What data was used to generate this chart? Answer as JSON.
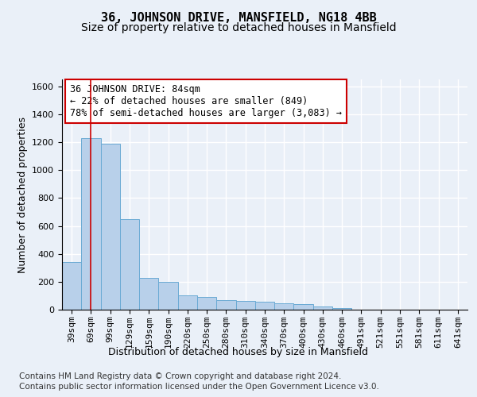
{
  "title": "36, JOHNSON DRIVE, MANSFIELD, NG18 4BB",
  "subtitle": "Size of property relative to detached houses in Mansfield",
  "xlabel": "Distribution of detached houses by size in Mansfield",
  "ylabel": "Number of detached properties",
  "footer_line1": "Contains HM Land Registry data © Crown copyright and database right 2024.",
  "footer_line2": "Contains public sector information licensed under the Open Government Licence v3.0.",
  "categories": [
    "39sqm",
    "69sqm",
    "99sqm",
    "129sqm",
    "159sqm",
    "190sqm",
    "220sqm",
    "250sqm",
    "280sqm",
    "310sqm",
    "340sqm",
    "370sqm",
    "400sqm",
    "430sqm",
    "460sqm",
    "491sqm",
    "521sqm",
    "551sqm",
    "581sqm",
    "611sqm",
    "641sqm"
  ],
  "values": [
    340,
    1230,
    1190,
    650,
    230,
    200,
    100,
    90,
    70,
    60,
    55,
    45,
    40,
    20,
    10,
    0,
    0,
    0,
    0,
    0,
    0
  ],
  "bar_color": "#b8d0ea",
  "bar_edge_color": "#6aaad4",
  "highlight_color": "#cc0000",
  "annotation_text": "36 JOHNSON DRIVE: 84sqm\n← 22% of detached houses are smaller (849)\n78% of semi-detached houses are larger (3,083) →",
  "annotation_box_color": "white",
  "annotation_box_edge_color": "#cc0000",
  "vline_x": 1,
  "ylim": [
    0,
    1650
  ],
  "yticks": [
    0,
    200,
    400,
    600,
    800,
    1000,
    1200,
    1400,
    1600
  ],
  "background_color": "#eaf0f8",
  "plot_background_color": "#eaf0f8",
  "grid_color": "white",
  "title_fontsize": 11,
  "subtitle_fontsize": 10,
  "axis_label_fontsize": 9,
  "tick_fontsize": 8,
  "annotation_fontsize": 8.5,
  "footer_fontsize": 7.5
}
